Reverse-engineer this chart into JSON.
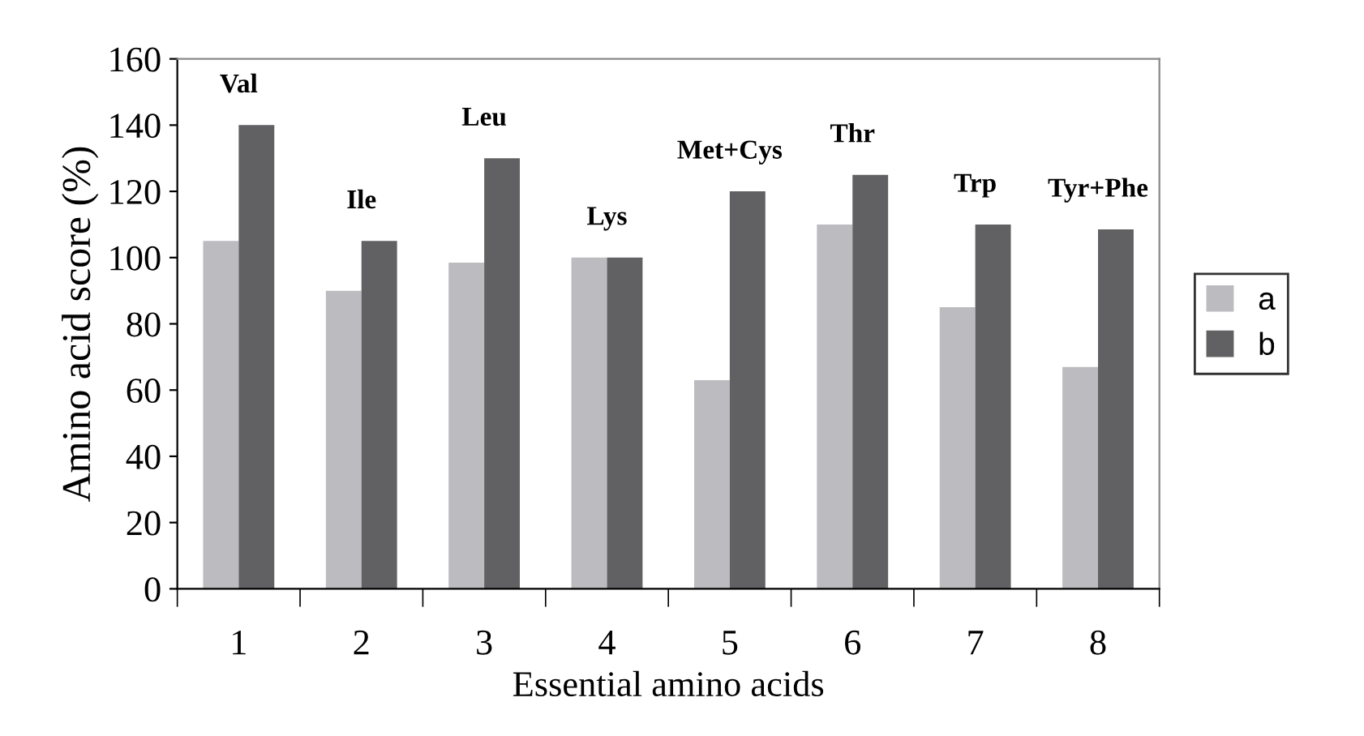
{
  "chart_data": {
    "type": "bar",
    "xlabel": "Essential amino acids",
    "ylabel": "Amino acid score (%)",
    "categories": [
      "1",
      "2",
      "3",
      "4",
      "5",
      "6",
      "7",
      "8"
    ],
    "series": [
      {
        "name": "a",
        "color": "#bcbcc0",
        "values": [
          105,
          90,
          98.5,
          100,
          63,
          110,
          85,
          67
        ]
      },
      {
        "name": "b",
        "color": "#616163",
        "values": [
          140,
          105,
          130,
          100,
          120,
          125,
          110,
          108.5
        ]
      }
    ],
    "ylim": [
      0,
      160
    ],
    "yticks": [
      0,
      20,
      40,
      60,
      80,
      100,
      120,
      140,
      160
    ],
    "annotations": [
      {
        "text": "Val",
        "x": "1",
        "y": 140
      },
      {
        "text": "Ile",
        "x": "2",
        "y": 105
      },
      {
        "text": "Leu",
        "x": "3",
        "y": 130
      },
      {
        "text": "Lys",
        "x": "4",
        "y": 100
      },
      {
        "text": "Met+Cys",
        "x": "5",
        "y": 120
      },
      {
        "text": "Thr",
        "x": "6",
        "y": 125
      },
      {
        "text": "Trp",
        "x": "7",
        "y": 110
      },
      {
        "text": "Tyr+Phe",
        "x": "8",
        "y": 108.5
      }
    ],
    "legend": "right",
    "grid": false
  }
}
